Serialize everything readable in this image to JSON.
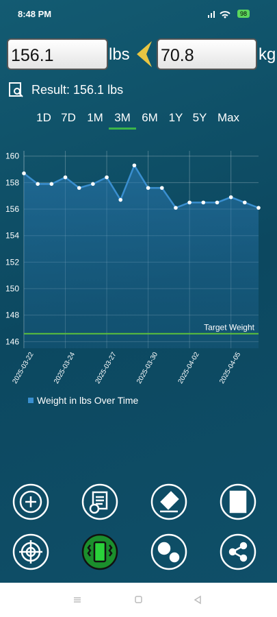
{
  "status_bar": {
    "time": "8:48 PM",
    "battery": "98"
  },
  "converter": {
    "lbs_value": "156.1",
    "lbs_unit": "lbs",
    "kg_value": "70.8",
    "kg_unit": "kg"
  },
  "result": "Result: 156.1 lbs",
  "tabs": [
    "1D",
    "7D",
    "1M",
    "3M",
    "6M",
    "1Y",
    "5Y",
    "Max"
  ],
  "active_tab": 3,
  "chart_data": {
    "type": "line",
    "categories": [
      "2025-03-22",
      null,
      null,
      "2025-03-24",
      null,
      null,
      "2025-03-27",
      null,
      null,
      "2025-03-30",
      null,
      null,
      "2025-04-02",
      null,
      null,
      "2025-04-05",
      null,
      null
    ],
    "series": [
      {
        "name": "Weight in lbs Over Time",
        "color": "#3a8fd0",
        "values": [
          158.7,
          157.9,
          157.9,
          158.4,
          157.6,
          157.9,
          158.4,
          156.7,
          159.3,
          157.6,
          157.6,
          156.1,
          156.5,
          156.5,
          156.5,
          156.9,
          156.5,
          156.1
        ]
      }
    ],
    "ylim": [
      145.5,
      160.4
    ],
    "yticks": [
      146,
      148,
      150,
      152,
      154,
      156,
      158,
      160
    ],
    "grid": true,
    "target": {
      "label": "Target Weight",
      "value": 146.6,
      "color": "#5cc23a"
    }
  }
}
